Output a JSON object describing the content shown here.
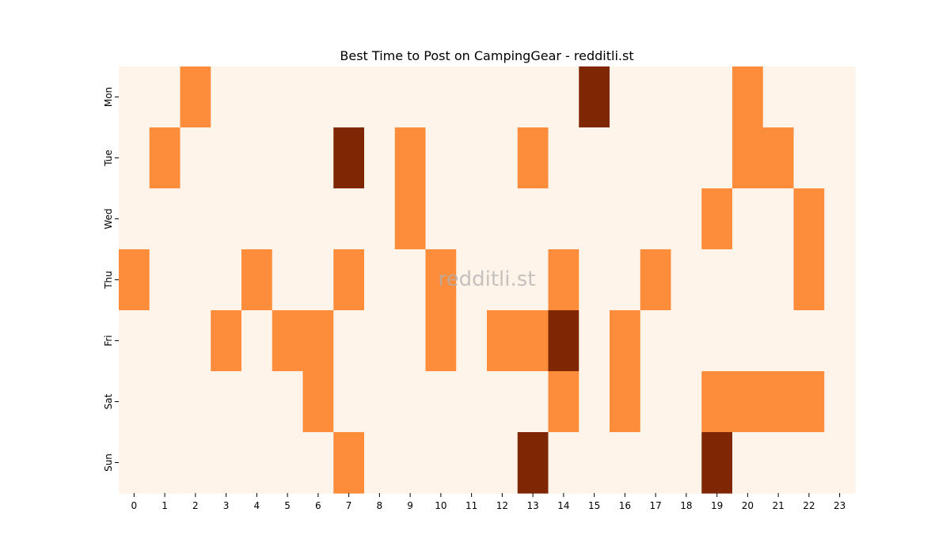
{
  "chart_data": {
    "type": "heatmap",
    "title": "Best Time to Post on CampingGear - redditli.st",
    "xlabel": "",
    "ylabel": "",
    "x_categories": [
      "0",
      "1",
      "2",
      "3",
      "4",
      "5",
      "6",
      "7",
      "8",
      "9",
      "10",
      "11",
      "12",
      "13",
      "14",
      "15",
      "16",
      "17",
      "18",
      "19",
      "20",
      "21",
      "22",
      "23"
    ],
    "y_categories": [
      "Mon",
      "Tue",
      "Wed",
      "Thu",
      "Fri",
      "Sat",
      "Sun"
    ],
    "values": [
      [
        0,
        0,
        1,
        0,
        0,
        0,
        0,
        0,
        0,
        0,
        0,
        0,
        0,
        0,
        0,
        2,
        0,
        0,
        0,
        0,
        1,
        0,
        0,
        0
      ],
      [
        0,
        1,
        0,
        0,
        0,
        0,
        0,
        2,
        0,
        1,
        0,
        0,
        0,
        1,
        0,
        0,
        0,
        0,
        0,
        0,
        1,
        1,
        0,
        0
      ],
      [
        0,
        0,
        0,
        0,
        0,
        0,
        0,
        0,
        0,
        1,
        0,
        0,
        0,
        0,
        0,
        0,
        0,
        0,
        0,
        1,
        0,
        0,
        1,
        0
      ],
      [
        1,
        0,
        0,
        0,
        1,
        0,
        0,
        1,
        0,
        0,
        1,
        0,
        0,
        0,
        1,
        0,
        0,
        1,
        0,
        0,
        0,
        0,
        1,
        0
      ],
      [
        0,
        0,
        0,
        1,
        0,
        1,
        1,
        0,
        0,
        0,
        1,
        0,
        1,
        1,
        2,
        0,
        1,
        0,
        0,
        0,
        0,
        0,
        0,
        0
      ],
      [
        0,
        0,
        0,
        0,
        0,
        0,
        1,
        0,
        0,
        0,
        0,
        0,
        0,
        0,
        1,
        0,
        1,
        0,
        0,
        1,
        1,
        1,
        1,
        0
      ],
      [
        0,
        0,
        0,
        0,
        0,
        0,
        0,
        1,
        0,
        0,
        0,
        0,
        0,
        2,
        0,
        0,
        0,
        0,
        0,
        2,
        0,
        0,
        0,
        0
      ]
    ],
    "value_range": [
      0,
      2
    ],
    "colormap": {
      "0": "#fef4e9",
      "1": "#fd8c3b",
      "2": "#7f2704"
    },
    "colorbar": false,
    "grid": false,
    "watermark": "redditli.st"
  }
}
